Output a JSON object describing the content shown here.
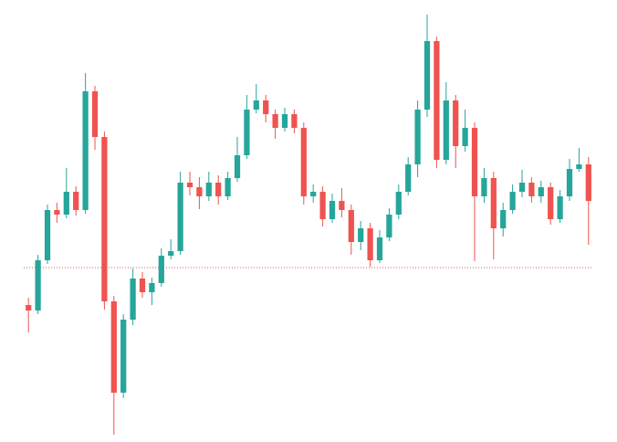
{
  "chart_data": {
    "type": "candlestick",
    "open": [
      150,
      144,
      199,
      254,
      249,
      274,
      254,
      384,
      334,
      154,
      54,
      134,
      179,
      164,
      174,
      204,
      209,
      284,
      279,
      269,
      284,
      269,
      289,
      314,
      364,
      374,
      359,
      344,
      359,
      344,
      269,
      274,
      244,
      264,
      254,
      219,
      234,
      199,
      224,
      249,
      274,
      304,
      364,
      439,
      309,
      374,
      324,
      344,
      269,
      289,
      234,
      254,
      274,
      284,
      269,
      279,
      244,
      269,
      299,
      304
    ],
    "high": [
      158,
      205,
      260,
      262,
      300,
      280,
      404,
      390,
      340,
      160,
      140,
      190,
      186,
      180,
      212,
      222,
      296,
      296,
      290,
      296,
      292,
      296,
      334,
      380,
      392,
      380,
      364,
      366,
      364,
      350,
      282,
      280,
      272,
      278,
      260,
      242,
      240,
      232,
      256,
      282,
      312,
      374,
      468,
      444,
      394,
      380,
      364,
      350,
      300,
      296,
      262,
      282,
      298,
      290,
      286,
      284,
      276,
      310,
      322,
      312
    ],
    "low": [
      120,
      140,
      195,
      240,
      245,
      248,
      250,
      320,
      145,
      8,
      48,
      128,
      158,
      150,
      170,
      200,
      205,
      270,
      255,
      264,
      260,
      265,
      285,
      310,
      360,
      350,
      332,
      340,
      338,
      260,
      262,
      236,
      240,
      246,
      205,
      210,
      192,
      196,
      220,
      244,
      270,
      290,
      356,
      300,
      304,
      300,
      318,
      198,
      262,
      200,
      225,
      250,
      268,
      262,
      262,
      238,
      240,
      264,
      296,
      216
    ],
    "close": [
      144,
      199,
      254,
      249,
      274,
      254,
      384,
      334,
      154,
      54,
      134,
      179,
      164,
      174,
      204,
      209,
      284,
      279,
      269,
      284,
      269,
      289,
      314,
      364,
      374,
      359,
      344,
      359,
      344,
      269,
      274,
      244,
      264,
      254,
      219,
      234,
      199,
      224,
      249,
      274,
      304,
      364,
      439,
      309,
      374,
      324,
      344,
      269,
      289,
      234,
      254,
      274,
      284,
      269,
      279,
      244,
      269,
      299,
      304,
      264
    ],
    "up_color": "#26a69a",
    "down_color": "#ef5350",
    "price_line": 191,
    "price_line_color": "#ef5350",
    "ylim": [
      0,
      484
    ]
  }
}
